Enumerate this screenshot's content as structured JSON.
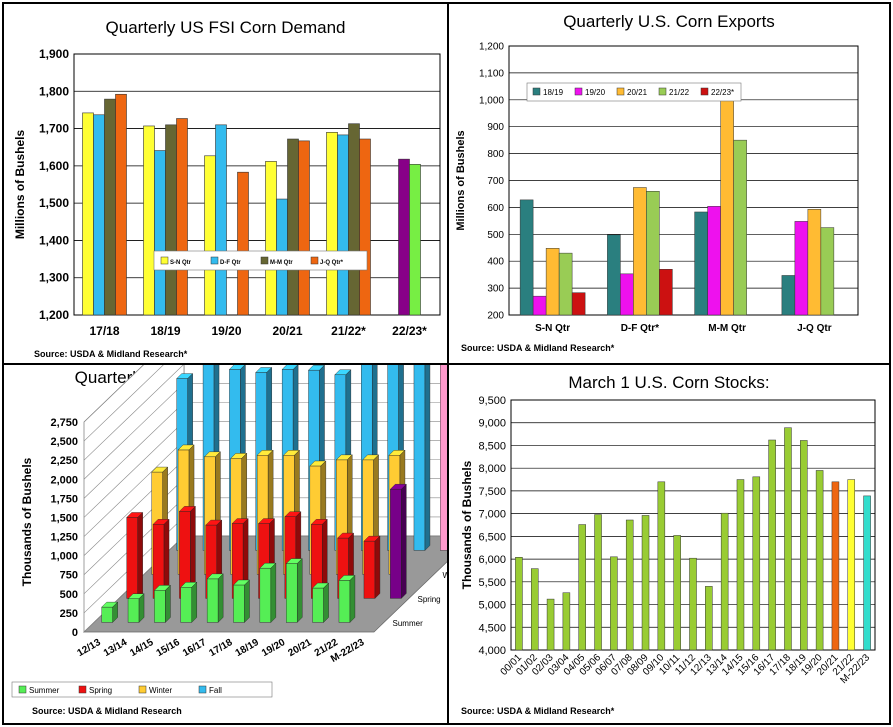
{
  "charts": [
    {
      "title": "Quarterly US FSI Corn Demand",
      "ylabel": "Millions of Bushels",
      "source": "Source: USDA & Midland Research*"
    },
    {
      "title": "Quarterly U.S. Corn Exports",
      "ylabel": "Millions of Bushels",
      "source": "Source: USDA & Midland Research*"
    },
    {
      "title": "Quarterly U.S. Corn Feed Demand",
      "ylabel": "Thousands of Bushels",
      "source": "Source: USDA & Midland Research"
    },
    {
      "title": "March 1 U.S. Corn Stocks:",
      "ylabel": "Thousands of Bushels",
      "source": "Source: USDA & Midland Research*"
    }
  ],
  "chart_data": [
    {
      "type": "bar",
      "title": "Quarterly US FSI Corn Demand",
      "ylabel": "Millions of Bushels",
      "categories": [
        "17/18",
        "18/19",
        "19/20",
        "20/21",
        "21/22*",
        "22/23*"
      ],
      "ylim": [
        1200,
        1900
      ],
      "yticks": [
        "1,200",
        "1,300",
        "1,400",
        "1,500",
        "1,600",
        "1,700",
        "1,800",
        "1,900"
      ],
      "legend_position": "center-right",
      "colors": [
        "#ffff33",
        "#33bbee",
        "#666633",
        "#ee6611",
        "#880088",
        "#77ee44"
      ],
      "series": [
        {
          "name": "S-N Qtr",
          "values": [
            1742,
            1707,
            1627,
            1612,
            1690,
            null
          ]
        },
        {
          "name": "D-F Qtr",
          "values": [
            1737,
            1641,
            1710,
            1511,
            1683,
            null
          ]
        },
        {
          "name": "M-M Qtr",
          "values": [
            1779,
            1710,
            null,
            1672,
            1713,
            null
          ]
        },
        {
          "name": "J-Q Qtr*",
          "values": [
            1792,
            1727,
            1583,
            1667,
            1672,
            null
          ]
        }
      ],
      "extra_bars": [
        {
          "category_index": 5,
          "color": "#880088",
          "value": 1618
        },
        {
          "category_index": 5,
          "color": "#77ee44",
          "value": 1604
        }
      ]
    },
    {
      "type": "bar",
      "title": "Quarterly U.S. Corn Exports",
      "ylabel": "Millions of Bushels",
      "categories": [
        "S-N Qtr",
        "D-F Qtr*",
        "M-M Qtr",
        "J-Q Qtr"
      ],
      "ylim": [
        200,
        1200
      ],
      "yticks": [
        "200",
        "300",
        "400",
        "500",
        "600",
        "700",
        "800",
        "900",
        "1,000",
        "1,100",
        "1,200"
      ],
      "legend_position": "top-left",
      "colors": [
        "#2a7f7f",
        "#ee11ee",
        "#ffbb33",
        "#99cc55",
        "#cc1111"
      ],
      "series": [
        {
          "name": "18/19",
          "values": [
            628,
            498,
            583,
            347
          ]
        },
        {
          "name": "19/20",
          "values": [
            270,
            353,
            604,
            548
          ]
        },
        {
          "name": "20/21",
          "values": [
            448,
            674,
            1027,
            593
          ]
        },
        {
          "name": "21/22",
          "values": [
            430,
            660,
            850,
            525
          ]
        },
        {
          "name": "22/23*",
          "values": [
            283,
            370,
            null,
            null
          ]
        }
      ]
    },
    {
      "type": "bar",
      "title": "Quarterly U.S. Corn Feed Demand",
      "ylabel": "Thousands of Bushels",
      "categories": [
        "12/13",
        "13/14",
        "14/15",
        "15/16",
        "16/17",
        "17/18",
        "18/19",
        "19/20",
        "20/21",
        "21/22",
        "M-22/23"
      ],
      "ylim": [
        0,
        2750
      ],
      "yticks": [
        "0",
        "250",
        "500",
        "750",
        "1,000",
        "1,250",
        "1,500",
        "1,750",
        "2,000",
        "2,250",
        "2,500",
        "2,750"
      ],
      "depth_labels": [
        "Summer",
        "Spring",
        "Winter",
        "Fall"
      ],
      "legend_position": "bottom",
      "colors": [
        "#55ee55",
        "#ee1111",
        "#ffcc33",
        "#33bbee"
      ],
      "series": [
        {
          "name": "Summer",
          "values": [
            200,
            310,
            420,
            460,
            570,
            490,
            710,
            770,
            450,
            550,
            null
          ]
        },
        {
          "name": "Spring",
          "values": [
            1060,
            970,
            1140,
            960,
            980,
            980,
            1070,
            970,
            790,
            750,
            null
          ]
        },
        {
          "name": "Winter",
          "values": [
            1340,
            1630,
            1540,
            1520,
            1560,
            1560,
            1420,
            1500,
            1500,
            1560,
            null
          ]
        },
        {
          "name": "Fall",
          "values": [
            2250,
            2470,
            2370,
            2330,
            2370,
            2360,
            2300,
            2710,
            2750,
            2660,
            null
          ]
        }
      ],
      "extra_bars": [
        {
          "category_index": 10,
          "depth": "Spring",
          "color": "#770088",
          "value": 1430
        },
        {
          "category_index": 10,
          "depth": "Fall",
          "color": "#ff99cc",
          "value": 2440
        }
      ]
    },
    {
      "type": "bar",
      "title": "March 1 U.S. Corn Stocks:",
      "ylabel": "Thousands of Bushels",
      "categories": [
        "00/01",
        "01/02",
        "02/03",
        "03/04",
        "04/05",
        "05/06",
        "06/07",
        "07/08",
        "08/09",
        "09/10",
        "10/11",
        "11/12",
        "12/13",
        "13/14",
        "14/15",
        "15/16",
        "16/17",
        "17/18",
        "18/19",
        "19/20",
        "20/21",
        "21/22",
        "M-22/23"
      ],
      "ylim": [
        4000,
        9500
      ],
      "yticks": [
        "4,000",
        "4,500",
        "5,000",
        "5,500",
        "6,000",
        "6,500",
        "7,000",
        "7,500",
        "8,000",
        "8,500",
        "9,000",
        "9,500"
      ],
      "values": [
        6040,
        5790,
        5120,
        5260,
        6760,
        6980,
        6050,
        6860,
        6960,
        7700,
        6520,
        6020,
        5400,
        7010,
        7750,
        7810,
        8620,
        8890,
        8610,
        7950,
        7700,
        7750,
        7390
      ],
      "colors": [
        "#99cc33",
        "#99cc33",
        "#99cc33",
        "#99cc33",
        "#99cc33",
        "#99cc33",
        "#99cc33",
        "#99cc33",
        "#99cc33",
        "#99cc33",
        "#99cc33",
        "#99cc33",
        "#99cc33",
        "#99cc33",
        "#99cc33",
        "#99cc33",
        "#99cc33",
        "#99cc33",
        "#99cc33",
        "#99cc33",
        "#ee6611",
        "#ffff33",
        "#33ddcc"
      ]
    }
  ]
}
